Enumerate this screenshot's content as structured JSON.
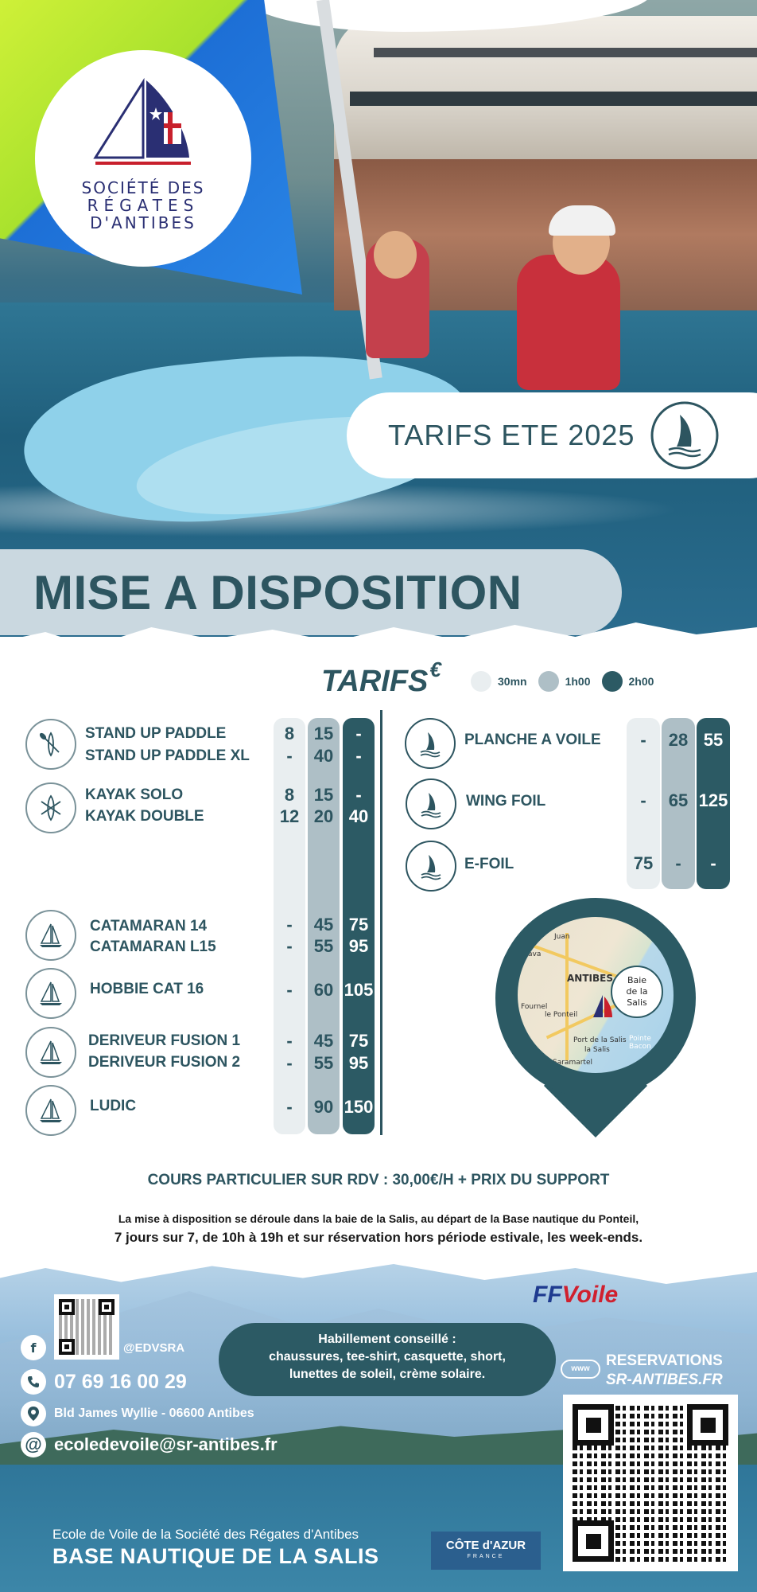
{
  "logo": {
    "line1": "SOCIÉTÉ DES",
    "line2": "RÉGATES",
    "line3": "D'ANTIBES"
  },
  "hero": {
    "tarifs_title": "TARIFS ETE 2025",
    "section_title": "MISE A DISPOSITION"
  },
  "table": {
    "header": "TARIFS",
    "currency": "€",
    "legend": [
      {
        "label": "30mn",
        "color": "#e9eef0"
      },
      {
        "label": "1h00",
        "color": "#aebfc6"
      },
      {
        "label": "2h00",
        "color": "#2c5a64"
      }
    ],
    "left_rows": [
      {
        "label": "STAND UP PADDLE",
        "p30": "8",
        "p1h": "15",
        "p2h": "-"
      },
      {
        "label": "STAND UP PADDLE  XL",
        "p30": "-",
        "p1h": "40",
        "p2h": "-"
      },
      {
        "label": "KAYAK SOLO",
        "p30": "8",
        "p1h": "15",
        "p2h": "-"
      },
      {
        "label": "KAYAK DOUBLE",
        "p30": "12",
        "p1h": "20",
        "p2h": "40"
      },
      {
        "label": "CATAMARAN 14",
        "p30": "-",
        "p1h": "45",
        "p2h": "75"
      },
      {
        "label": "CATAMARAN L15",
        "p30": "-",
        "p1h": "55",
        "p2h": "95"
      },
      {
        "label": "HOBBIE CAT 16",
        "p30": "-",
        "p1h": "60",
        "p2h": "105"
      },
      {
        "label": "DERIVEUR  FUSION 1",
        "p30": "-",
        "p1h": "45",
        "p2h": "75"
      },
      {
        "label": "DERIVEUR  FUSION 2",
        "p30": "-",
        "p1h": "55",
        "p2h": "95"
      },
      {
        "label": "LUDIC",
        "p30": "-",
        "p1h": "90",
        "p2h": "150"
      }
    ],
    "right_rows": [
      {
        "label": "PLANCHE A VOILE",
        "p30": "-",
        "p1h": "28",
        "p2h": "55"
      },
      {
        "label": "WING FOIL",
        "p30": "-",
        "p1h": "65",
        "p2h": "125"
      },
      {
        "label": "E-FOIL",
        "p30": "75",
        "p1h": "-",
        "p2h": "-"
      }
    ]
  },
  "map": {
    "city": "ANTIBES",
    "bubble": [
      "Baie",
      "de la",
      "Salis"
    ],
    "labels": [
      "Juan",
      "Lava",
      "Fournel",
      "le Ponteil",
      "Port de la Salis",
      "la Salis",
      "Saramartel",
      "Pointe Bacon"
    ]
  },
  "info": {
    "cours": "COURS PARTICULIER SUR RDV : 30,00€/H + PRIX DU SUPPORT",
    "desc1": "La mise à disposition se déroule dans la baie de la Salis, au départ de la Base nautique du Ponteil,",
    "desc2": "7 jours sur 7, de 10h à 19h et sur réservation hors période estivale, les week-ends."
  },
  "footer": {
    "social": "@EDVSRA",
    "phone": "07 69 16 00 29",
    "address": "Bld James Wyllie - 06600 Antibes",
    "email": "ecoledevoile@sr-antibes.fr",
    "habillement_title": "Habillement conseillé :",
    "habillement_line1": "chaussures, tee-shirt, casquette, short,",
    "habillement_line2": "lunettes de soleil, crème solaire.",
    "ff_a": "FF",
    "ff_b": "Voile",
    "www": "www",
    "reservations": "RESERVATIONS",
    "reservations_url": "SR-ANTIBES.FR",
    "ecole": "Ecole de Voile de la Société des Régates d'Antibes",
    "base": "BASE NAUTIQUE DE LA SALIS",
    "cote_a": "CÔTE d'AZUR",
    "cote_b": "FRANCE"
  }
}
